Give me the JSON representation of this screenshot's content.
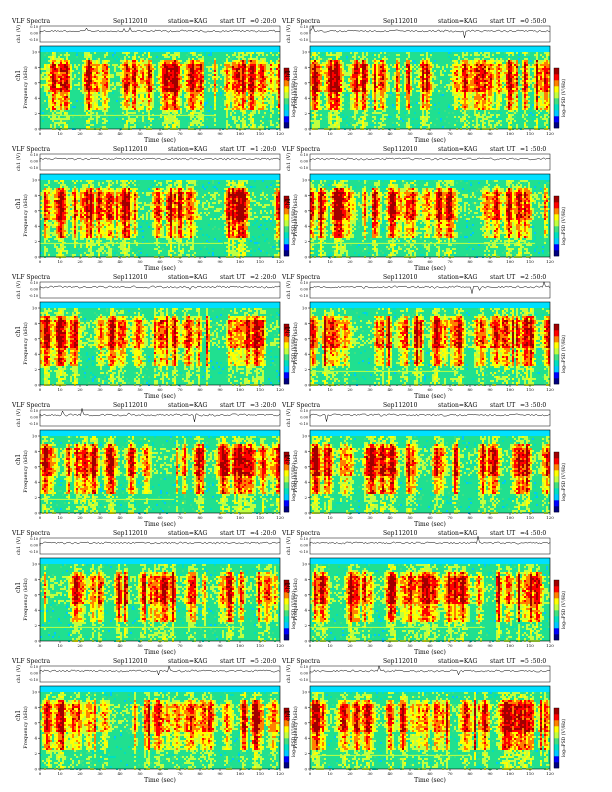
{
  "figure": {
    "title_prefix": "VLF Spectra",
    "date": "Sep112010",
    "station": "station=KAG",
    "start_label": "start  UT",
    "xlabel": "Time  (sec)",
    "ylabel_freq": "Frequency  (kHz)",
    "ylabel_wave": "ch1 (V)",
    "channel_label": "ch1",
    "colorbar_label": "log₁₀PSD (V²/Hz)",
    "wave_ticks": [
      "0.10",
      "0.00",
      "-0.10"
    ],
    "freq_ticks": [
      "0",
      "2",
      "4",
      "6",
      "8",
      "10"
    ],
    "time_ticks": [
      "0",
      "10",
      "20",
      "30",
      "40",
      "50",
      "60",
      "70",
      "80",
      "90",
      "100",
      "110",
      "120"
    ],
    "colormap": [
      "#000080",
      "#0000ff",
      "#00c8ff",
      "#00e0c0",
      "#40e080",
      "#c0ff40",
      "#ffff00",
      "#ff8000",
      "#ff0000",
      "#a00000"
    ]
  },
  "chart_data": [
    {
      "type": "heatmap",
      "start": "=0 :20:0",
      "xlim": [
        0,
        120
      ],
      "ylim": [
        0,
        10
      ]
    },
    {
      "type": "heatmap",
      "start": "=0 :50:0",
      "xlim": [
        0,
        120
      ],
      "ylim": [
        0,
        10
      ]
    },
    {
      "type": "heatmap",
      "start": "=1 :20:0",
      "xlim": [
        0,
        120
      ],
      "ylim": [
        0,
        10
      ]
    },
    {
      "type": "heatmap",
      "start": "=1 :50:0",
      "xlim": [
        0,
        120
      ],
      "ylim": [
        0,
        10
      ]
    },
    {
      "type": "heatmap",
      "start": "=2 :20:0",
      "xlim": [
        0,
        120
      ],
      "ylim": [
        0,
        10
      ]
    },
    {
      "type": "heatmap",
      "start": "=2 :50:0",
      "xlim": [
        0,
        120
      ],
      "ylim": [
        0,
        10
      ]
    },
    {
      "type": "heatmap",
      "start": "=3 :20:0",
      "xlim": [
        0,
        120
      ],
      "ylim": [
        0,
        10
      ]
    },
    {
      "type": "heatmap",
      "start": "=3 :50:0",
      "xlim": [
        0,
        120
      ],
      "ylim": [
        0,
        10
      ]
    },
    {
      "type": "heatmap",
      "start": "=4 :20:0",
      "xlim": [
        0,
        120
      ],
      "ylim": [
        0,
        10
      ]
    },
    {
      "type": "heatmap",
      "start": "=4 :50:0",
      "xlim": [
        0,
        120
      ],
      "ylim": [
        0,
        10
      ]
    },
    {
      "type": "heatmap",
      "start": "=5 :20:0",
      "xlim": [
        0,
        120
      ],
      "ylim": [
        0,
        10
      ]
    },
    {
      "type": "heatmap",
      "start": "=5 :50:0",
      "xlim": [
        0,
        120
      ],
      "ylim": [
        0,
        10
      ]
    }
  ]
}
